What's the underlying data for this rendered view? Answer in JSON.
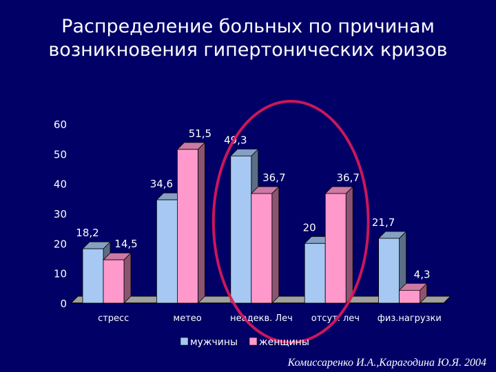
{
  "title_lines": [
    "Распределение больных по причинам",
    "возникновения гипертонических кризов"
  ],
  "caption": "Комиссаренко И.А.,Карагодина Ю.Я. 2004",
  "colors": {
    "background": "#000066",
    "men": "#a6c8f2",
    "women": "#ff99cc",
    "highlight": "#e0195a"
  },
  "chart_data": {
    "type": "bar",
    "categories": [
      "стресс",
      "метео",
      "неадекв. Леч",
      "отсут. леч",
      "физ.нагрузки"
    ],
    "series": [
      {
        "name": "мужчины",
        "values": [
          18.2,
          34.6,
          49.3,
          20,
          21.7
        ],
        "labels": [
          "18,2",
          "34,6",
          "49,3",
          "20",
          "21,7"
        ]
      },
      {
        "name": "женщины",
        "values": [
          14.5,
          51.5,
          36.7,
          36.7,
          4.3
        ],
        "labels": [
          "14,5",
          "51,5",
          "36,7",
          "36,7",
          "4,3"
        ]
      }
    ],
    "ylim": [
      0,
      60
    ],
    "yticks": [
      "0",
      "10",
      "20",
      "30",
      "40",
      "50",
      "60"
    ],
    "grid": false,
    "legend": "bottom",
    "highlighted_categories": [
      "неадекв. Леч",
      "отсут. леч"
    ]
  }
}
